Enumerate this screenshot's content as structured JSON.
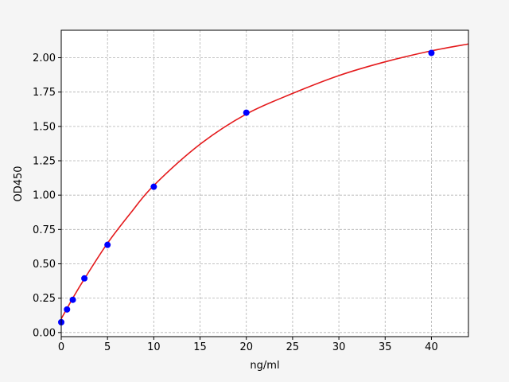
{
  "chart_data": {
    "type": "scatter",
    "title": "",
    "xlabel": "ng/ml",
    "ylabel": "OD450",
    "xlim": [
      0,
      44
    ],
    "ylim": [
      -0.03,
      2.2
    ],
    "grid": true,
    "xticks": [
      0,
      5,
      10,
      15,
      20,
      25,
      30,
      35,
      40
    ],
    "xtick_labels": [
      "0",
      "5",
      "10",
      "15",
      "20",
      "25",
      "30",
      "35",
      "40"
    ],
    "yticks": [
      0,
      0.25,
      0.5,
      0.75,
      1.0,
      1.25,
      1.5,
      1.75,
      2.0
    ],
    "ytick_labels": [
      "0.00",
      "0.25",
      "0.50",
      "0.75",
      "1.00",
      "1.25",
      "1.50",
      "1.75",
      "2.00"
    ],
    "points": {
      "x": [
        0,
        0.625,
        1.25,
        2.5,
        5,
        10,
        20,
        40
      ],
      "y": [
        0.075,
        0.168,
        0.238,
        0.394,
        0.638,
        1.061,
        1.6,
        2.035
      ],
      "color": "#0000ff"
    },
    "fit_curve": {
      "x": [
        0,
        1.25,
        2.5,
        5,
        7.5,
        10,
        15,
        20,
        25,
        30,
        35,
        40,
        44
      ],
      "y": [
        0.1,
        0.25,
        0.39,
        0.65,
        0.87,
        1.07,
        1.37,
        1.59,
        1.74,
        1.87,
        1.97,
        2.05,
        2.1
      ],
      "color": "#e41a1c"
    }
  }
}
